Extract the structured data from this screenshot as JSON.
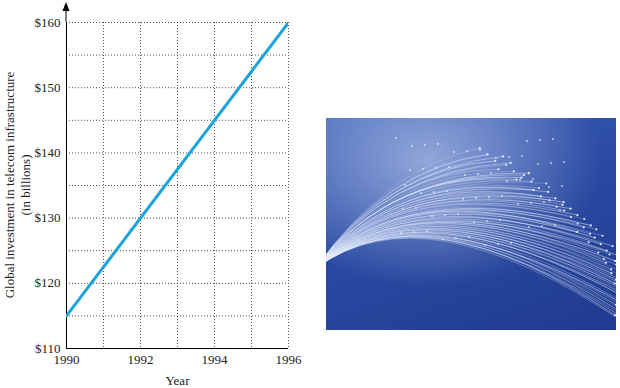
{
  "chart_data": {
    "type": "line",
    "y_label": [
      "Global investment in telecom infrastructure",
      "(in billions)"
    ],
    "x_label": "Year",
    "x": [
      1990,
      1996
    ],
    "values": [
      115,
      160
    ],
    "color": "#1ba3dd",
    "xlim": [
      1990,
      1996
    ],
    "xticks": [
      1990,
      1992,
      1994,
      1996
    ],
    "ylim": [
      110,
      160
    ],
    "yticks": [
      {
        "value": 110,
        "label": "$110"
      },
      {
        "value": 120,
        "label": "$120"
      },
      {
        "value": 130,
        "label": "$130"
      },
      {
        "value": 140,
        "label": "$140"
      },
      {
        "value": 150,
        "label": "$150"
      },
      {
        "value": 160,
        "label": "$160"
      }
    ],
    "grid": true
  }
}
